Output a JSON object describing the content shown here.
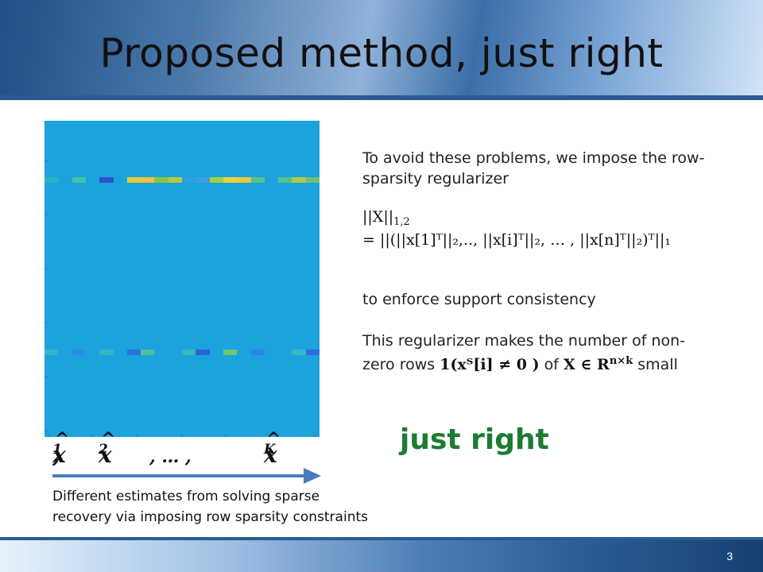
{
  "slide": {
    "title": "Proposed method, just right",
    "page_number": "3"
  },
  "figure": {
    "axis_labels": {
      "x1": "x",
      "x1_sub": "1",
      "comma1": ",",
      "x2": "x",
      "x2_sub": "2",
      "ellipsis": ", … ,",
      "xk": "x",
      "xk_sub": "K"
    },
    "caption_line1": "Different estimates from solving sparse",
    "caption_line2": "recovery via imposing row sparsity constraints",
    "colors": {
      "background": "#1ca2dc",
      "row_palette": [
        "#1ca2dc",
        "#27b3c4",
        "#3a9fe0",
        "#2b6fe0",
        "#4ac0a0",
        "#9ccc3a",
        "#e9d23a",
        "#f5c234",
        "#2a52be"
      ]
    },
    "chart_data": {
      "type": "heatmap",
      "nonzero_rows": [
        {
          "row": "upper",
          "cells": [
            "#27b3c4",
            "#1ca2dc",
            "#3fc1a6",
            "#1ca2dc",
            "#2b54c8",
            "#1ca2dc",
            "#e5c93a",
            "#f3c13a",
            "#8fc53e",
            "#b9c83a",
            "#2e9fe6",
            "#3a9fe0",
            "#a6cc3f",
            "#e9d23a",
            "#f0c83a",
            "#5bc28a",
            "#1ca2dc",
            "#56c08f",
            "#b6ca40",
            "#73c26f"
          ]
        },
        {
          "row": "lower",
          "cells": [
            "#33b5c8",
            "#1ca2dc",
            "#2e8ce4",
            "#1ca2dc",
            "#31b7c0",
            "#1ca2dc",
            "#2e74d6",
            "#4cc19a",
            "#1ca2dc",
            "#1ca2dc",
            "#35b8be",
            "#2d63d5",
            "#1ca2dc",
            "#6fc66c",
            "#1ca2dc",
            "#2c84e6",
            "#1ca2dc",
            "#1ca2dc",
            "#38b7c0",
            "#2c6ee0"
          ]
        }
      ]
    }
  },
  "text": {
    "p1": "To avoid these problems, we impose the row-sparsity regularizer",
    "eq1_lhs": "||X||",
    "eq1_lhs_sub": "1,2",
    "eq1_rhs": "= ||(||x[1]ᵀ||₂,.., ||x[i]ᵀ||₂, … , ||x[n]ᵀ||₂)ᵀ||₁",
    "p2": "to enforce support consistency",
    "p3_line1": "This regularizer makes the number of non-",
    "p3_line2_pre": "zero rows",
    "p3_math": "1(xᵀ[i] ≠ 0 )",
    "p3_of": "of",
    "p3_math2": "X ∈ R",
    "p3_sup": "n×k",
    "p3_post": "small",
    "just_right": "just right"
  }
}
